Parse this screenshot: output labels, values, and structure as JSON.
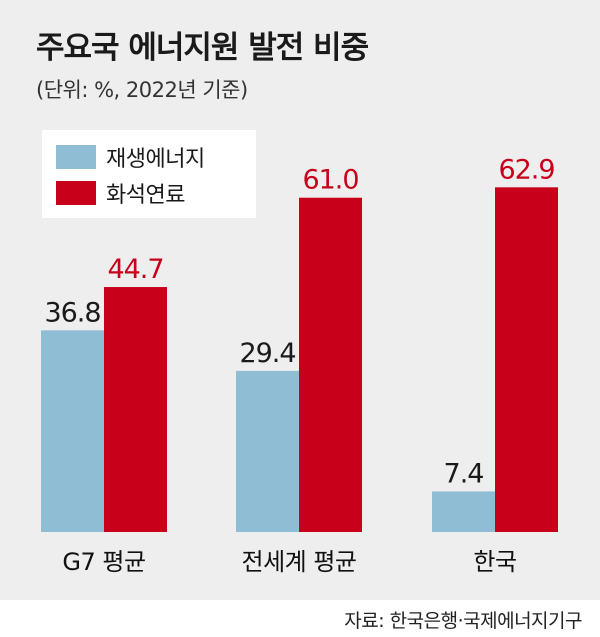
{
  "title": "주요국 에너지원 발전 비중",
  "subtitle": "(단위: %, 2022년 기준)",
  "source": "자료: 한국은행·국제에너지기구",
  "colors": {
    "renewable": "#8fbdd3",
    "fossil": "#c8001a",
    "fossil_label": "#c8001a",
    "renewable_label": "#1a1a1a",
    "background": "#eeeeee"
  },
  "chart_data": {
    "type": "bar",
    "title": "주요국 에너지원 발전 비중",
    "subtitle": "(단위: %, 2022년 기준)",
    "categories": [
      "G7 평균",
      "전세계 평균",
      "한국"
    ],
    "series": [
      {
        "name": "재생에너지",
        "values": [
          36.8,
          29.4,
          7.4
        ],
        "labels": [
          "36.8",
          "29.4",
          "7.4"
        ]
      },
      {
        "name": "화석연료",
        "values": [
          44.7,
          61.0,
          62.9
        ],
        "labels": [
          "44.7",
          "61.0",
          "62.9"
        ]
      }
    ],
    "ylim": [
      0,
      65
    ],
    "grid": false,
    "legend_position": "top-left"
  }
}
